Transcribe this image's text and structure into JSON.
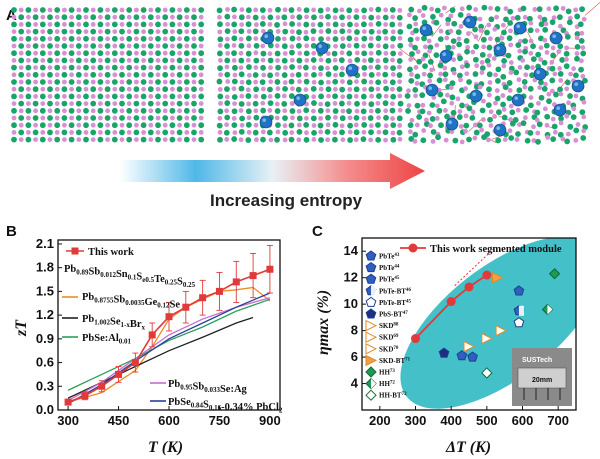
{
  "panels": {
    "a": {
      "letter": "A",
      "arrow_label": "Increasing entropy"
    },
    "b": {
      "letter": "B"
    },
    "c": {
      "letter": "C"
    }
  },
  "colors": {
    "lattice_green": "#1aa36a",
    "lattice_pink": "#d98fd6",
    "lattice_blue": "#1f73c4",
    "red": "#e03a3a",
    "orange": "#f08a24",
    "black": "#222222",
    "green": "#2aa05a",
    "magenta": "#c86ad0",
    "navy": "#2a3f9a",
    "ellipse": "#43c0c8"
  },
  "chart_data": [
    {
      "id": "b",
      "type": "line",
      "xlabel": "T (K)",
      "ylabel": "zT",
      "xlim": [
        270,
        930
      ],
      "ylim": [
        0,
        2.15
      ],
      "xticks": [
        "300",
        "450",
        "600",
        "750",
        "900"
      ],
      "xtick_values": [
        300,
        450,
        600,
        750,
        900
      ],
      "yticks": [
        "0.0",
        "0.3",
        "0.6",
        "0.9",
        "1.2",
        "1.5",
        "1.8",
        "2.1"
      ],
      "ytick_values": [
        0,
        0.3,
        0.6,
        0.9,
        1.2,
        1.5,
        1.8,
        2.1
      ],
      "legend_placement": "top-left",
      "series": [
        {
          "name": "This work",
          "composition": "Pb0.89Sb0.012Sn0.1Se0.5Te0.25S0.25",
          "color": "#e03a3a",
          "marker": "square",
          "x": [
            300,
            350,
            400,
            450,
            500,
            550,
            600,
            650,
            700,
            750,
            800,
            850,
            900
          ],
          "y": [
            0.1,
            0.18,
            0.3,
            0.45,
            0.6,
            0.95,
            1.18,
            1.3,
            1.42,
            1.5,
            1.62,
            1.7,
            1.78
          ],
          "err": [
            0.03,
            0.05,
            0.07,
            0.1,
            0.12,
            0.15,
            0.18,
            0.2,
            0.22,
            0.24,
            0.26,
            0.28,
            0.3
          ]
        },
        {
          "name": "Pb0.8755Sb0.0035Ge0.12Se",
          "color": "#f08a24",
          "x": [
            300,
            400,
            500,
            550,
            600,
            650,
            700,
            750,
            800,
            850,
            900
          ],
          "y": [
            0.1,
            0.22,
            0.5,
            0.8,
            1.15,
            1.3,
            1.4,
            1.5,
            1.52,
            1.55,
            1.38
          ],
          "err": []
        },
        {
          "name": "Pb1.002Se1-xBrx",
          "color": "#222222",
          "x": [
            300,
            400,
            500,
            600,
            700,
            800,
            850
          ],
          "y": [
            0.15,
            0.35,
            0.55,
            0.75,
            0.92,
            1.1,
            1.17
          ],
          "err": []
        },
        {
          "name": "PbSe:Al0.01",
          "color": "#2aa05a",
          "x": [
            300,
            400,
            500,
            600,
            700,
            800,
            900
          ],
          "y": [
            0.25,
            0.45,
            0.65,
            0.88,
            1.05,
            1.25,
            1.4
          ],
          "err": []
        },
        {
          "name": "Pb0.95Sb0.033Se:Ag",
          "color": "#c86ad0",
          "x": [
            300,
            400,
            500,
            600,
            700,
            800,
            900
          ],
          "y": [
            0.12,
            0.35,
            0.65,
            0.95,
            1.15,
            1.3,
            1.42
          ],
          "err": []
        },
        {
          "name": "PbSe0.84S0.16-0.34% PbCl2",
          "color": "#2a3f9a",
          "x": [
            300,
            400,
            500,
            600,
            700,
            800,
            900
          ],
          "y": [
            0.08,
            0.32,
            0.62,
            0.9,
            1.1,
            1.3,
            1.48
          ],
          "err": []
        }
      ]
    },
    {
      "id": "c",
      "type": "scatter",
      "xlabel": "ΔT (K)",
      "ylabel": "ηmax (%)",
      "xlim": [
        150,
        750
      ],
      "ylim": [
        2,
        15
      ],
      "xticks": [
        "200",
        "300",
        "400",
        "500",
        "600",
        "700"
      ],
      "xtick_values": [
        200,
        300,
        400,
        500,
        600,
        700
      ],
      "yticks": [
        "4",
        "6",
        "8",
        "10",
        "12",
        "14"
      ],
      "ytick_values": [
        4,
        6,
        8,
        10,
        12,
        14
      ],
      "legend_placement": "top-left",
      "main_series": {
        "name": "This work segmented module",
        "color": "#e03a3a",
        "x": [
          300,
          400,
          450,
          500
        ],
        "y": [
          7.4,
          10.2,
          11.3,
          12.2
        ]
      },
      "literature": [
        {
          "name": "PbTe",
          "ref": "43",
          "marker": "pentagon",
          "x": 430,
          "y": 6.1
        },
        {
          "name": "PbTe",
          "ref": "44",
          "marker": "pentagon",
          "x": 460,
          "y": 6.0
        },
        {
          "name": "PbTe",
          "ref": "45",
          "marker": "pentagon",
          "x": 590,
          "y": 11.0
        },
        {
          "name": "PbTe-BT",
          "ref": "46",
          "marker": "pentagon-half",
          "x": 590,
          "y": 9.5
        },
        {
          "name": "PbTe-BT",
          "ref": "45",
          "marker": "pentagon-open",
          "x": 590,
          "y": 8.6
        },
        {
          "name": "PbS-BT",
          "ref": "47",
          "marker": "pentagon-navy",
          "x": 380,
          "y": 6.3
        },
        {
          "name": "SKD",
          "ref": "88",
          "marker": "triangle-open",
          "x": 540,
          "y": 8.0
        },
        {
          "name": "SKD",
          "ref": "69",
          "marker": "triangle-open",
          "x": 500,
          "y": 7.4
        },
        {
          "name": "SKD",
          "ref": "70",
          "marker": "triangle-open",
          "x": 450,
          "y": 6.8
        },
        {
          "name": "SKD-BT",
          "ref": "71",
          "marker": "triangle-orange",
          "x": 530,
          "y": 12.0
        },
        {
          "name": "HH",
          "ref": "73",
          "marker": "diamond",
          "x": 690,
          "y": 12.3
        },
        {
          "name": "HH",
          "ref": "72",
          "marker": "diamond-half",
          "x": 670,
          "y": 9.6
        },
        {
          "name": "HH-BT",
          "ref": "72",
          "marker": "diamond-open",
          "x": 500,
          "y": 4.8
        }
      ],
      "inset_label": "20mm",
      "inset_brand": "SUSTech"
    }
  ]
}
